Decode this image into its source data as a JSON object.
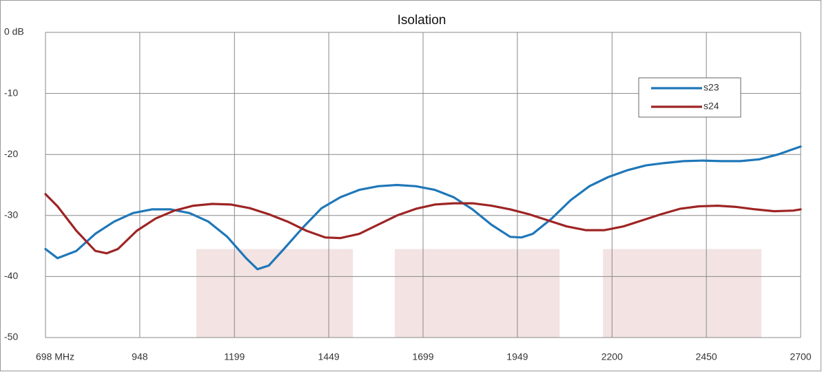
{
  "chart_data": {
    "type": "line",
    "title": "Isolation",
    "xlim": [
      698,
      2700
    ],
    "ylim": [
      -50,
      0
    ],
    "xticks": [
      {
        "value": 698,
        "label": "698  MHz"
      },
      948,
      1199,
      1449,
      1699,
      1949,
      2200,
      2450,
      2700
    ],
    "yticks": [
      {
        "value": 0,
        "label": "0 dB"
      },
      -10,
      -20,
      -30,
      -40,
      -50
    ],
    "grid": true,
    "legend": "upper right",
    "shaded_regions": {
      "color": "#f3e3e3",
      "x": [
        [
          1098,
          1513
        ],
        [
          1624,
          2061
        ],
        [
          2176,
          2596
        ]
      ],
      "y": [
        [
          -50,
          -35.5
        ],
        [
          -50,
          -35.5
        ],
        [
          -50,
          -35.5
        ]
      ]
    },
    "series": [
      {
        "name": "s23",
        "color": "#1f77b8",
        "x": [
          698,
          730,
          780,
          830,
          880,
          930,
          980,
          1030,
          1080,
          1130,
          1180,
          1230,
          1260,
          1290,
          1330,
          1380,
          1430,
          1480,
          1530,
          1580,
          1630,
          1680,
          1730,
          1780,
          1830,
          1880,
          1930,
          1960,
          1990,
          2040,
          2090,
          2140,
          2190,
          2240,
          2290,
          2340,
          2390,
          2440,
          2490,
          2540,
          2590,
          2640,
          2700
        ],
        "values": [
          -35.5,
          -37.0,
          -35.8,
          -33.0,
          -31.0,
          -29.6,
          -29.0,
          -29.0,
          -29.6,
          -31.0,
          -33.5,
          -37.0,
          -38.8,
          -38.2,
          -35.5,
          -32.0,
          -28.8,
          -27.0,
          -25.8,
          -25.2,
          -25.0,
          -25.2,
          -25.8,
          -27.0,
          -29.0,
          -31.5,
          -33.5,
          -33.6,
          -33.0,
          -30.5,
          -27.5,
          -25.2,
          -23.7,
          -22.6,
          -21.8,
          -21.4,
          -21.1,
          -21.0,
          -21.1,
          -21.1,
          -20.8,
          -20.0,
          -18.7
        ]
      },
      {
        "name": "s24",
        "color": "#9e2424",
        "x": [
          698,
          730,
          780,
          830,
          860,
          890,
          940,
          990,
          1040,
          1090,
          1140,
          1190,
          1240,
          1290,
          1340,
          1390,
          1440,
          1480,
          1530,
          1580,
          1630,
          1680,
          1730,
          1780,
          1830,
          1880,
          1930,
          1980,
          2030,
          2080,
          2130,
          2180,
          2230,
          2280,
          2330,
          2380,
          2430,
          2480,
          2530,
          2580,
          2630,
          2680,
          2700
        ],
        "values": [
          -26.5,
          -28.5,
          -32.5,
          -35.8,
          -36.2,
          -35.5,
          -32.5,
          -30.5,
          -29.2,
          -28.4,
          -28.1,
          -28.2,
          -28.8,
          -29.8,
          -31.0,
          -32.5,
          -33.6,
          -33.7,
          -33.0,
          -31.5,
          -30.0,
          -28.9,
          -28.2,
          -28.0,
          -28.0,
          -28.4,
          -29.0,
          -29.8,
          -30.8,
          -31.8,
          -32.4,
          -32.4,
          -31.8,
          -30.8,
          -29.8,
          -28.9,
          -28.5,
          -28.4,
          -28.6,
          -29.0,
          -29.3,
          -29.2,
          -29.0
        ]
      }
    ]
  }
}
